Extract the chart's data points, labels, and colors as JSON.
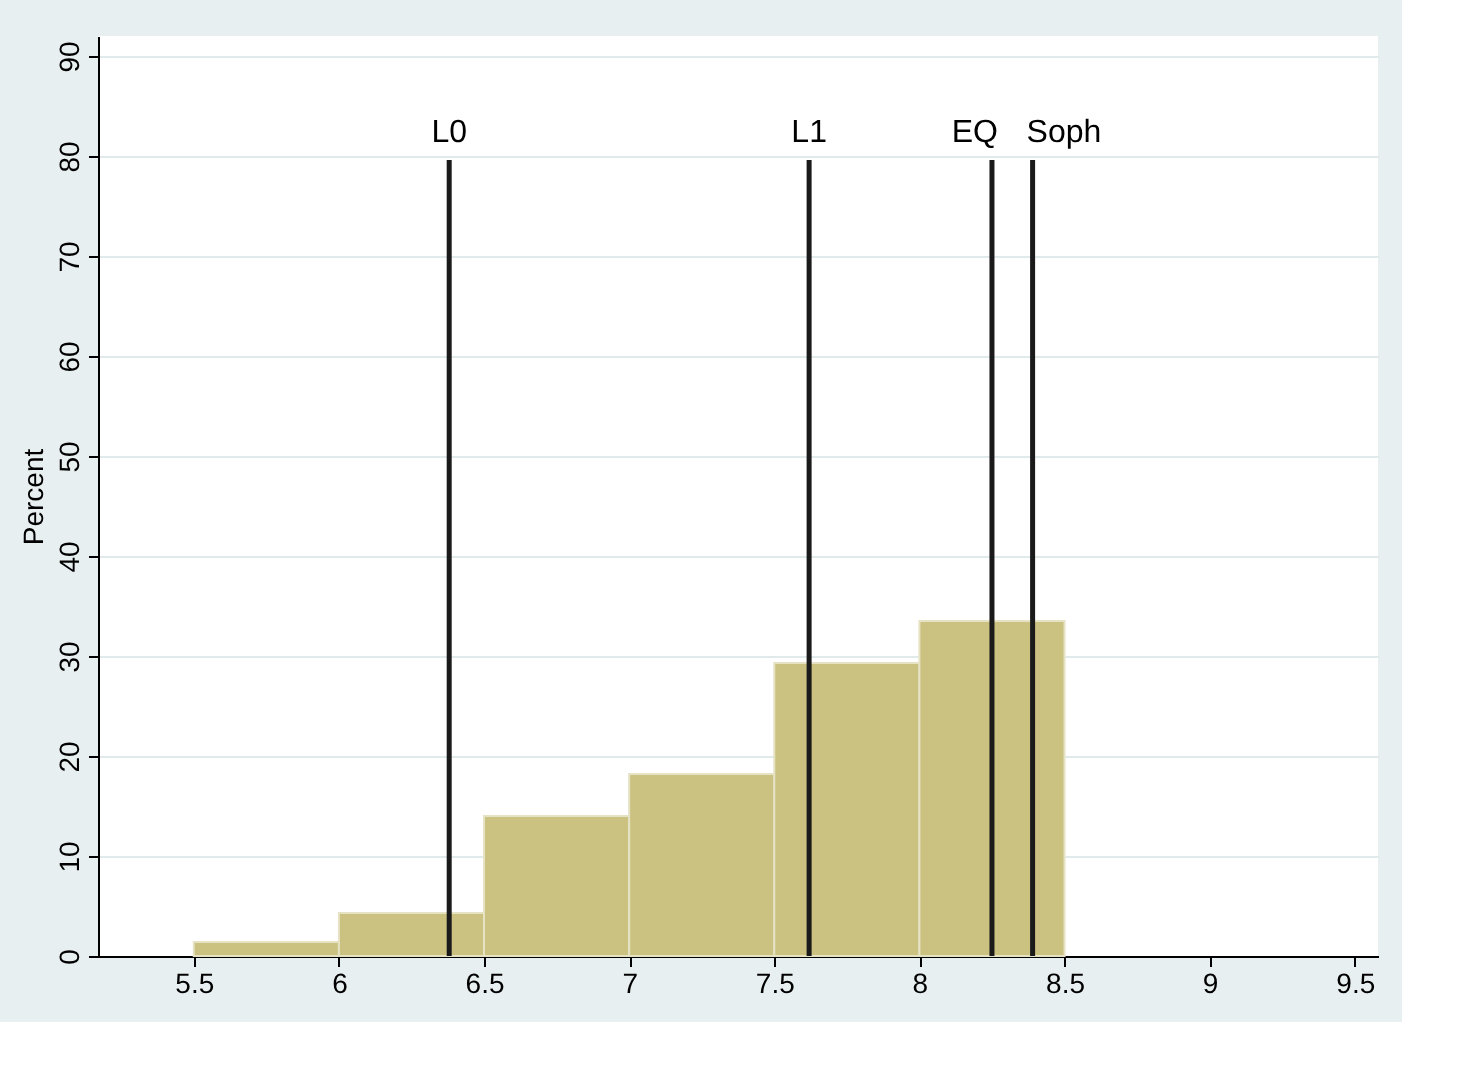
{
  "chart_data": {
    "type": "histogram",
    "ylabel": "Percent",
    "color": "#cbc281",
    "bins": [
      5.5,
      6,
      6.5,
      7,
      7.5,
      8,
      8.5
    ],
    "values": [
      1.4,
      4.3,
      14.0,
      18.2,
      29.3,
      33.5
    ],
    "xlim": [
      5.17,
      9.58
    ],
    "xticks": [
      5.5,
      6,
      6.5,
      7,
      7.5,
      8,
      8.5,
      9,
      9.5
    ],
    "ylim": [
      0,
      92
    ],
    "yticks": [
      0,
      10,
      20,
      30,
      40,
      50,
      60,
      70,
      80,
      90
    ],
    "grid": "y",
    "ref_lines": [
      {
        "axis": "x",
        "value": 6.38,
        "label": "L0",
        "color": "#1a1a1a"
      },
      {
        "axis": "x",
        "value": 7.62,
        "label": "L1",
        "color": "#1a1a1a"
      },
      {
        "axis": "x",
        "value": 8.25,
        "label": "EQ",
        "color": "#1a1a1a"
      },
      {
        "axis": "x",
        "value": 8.39,
        "label": "Soph",
        "color": "#1a1a1a"
      }
    ]
  }
}
